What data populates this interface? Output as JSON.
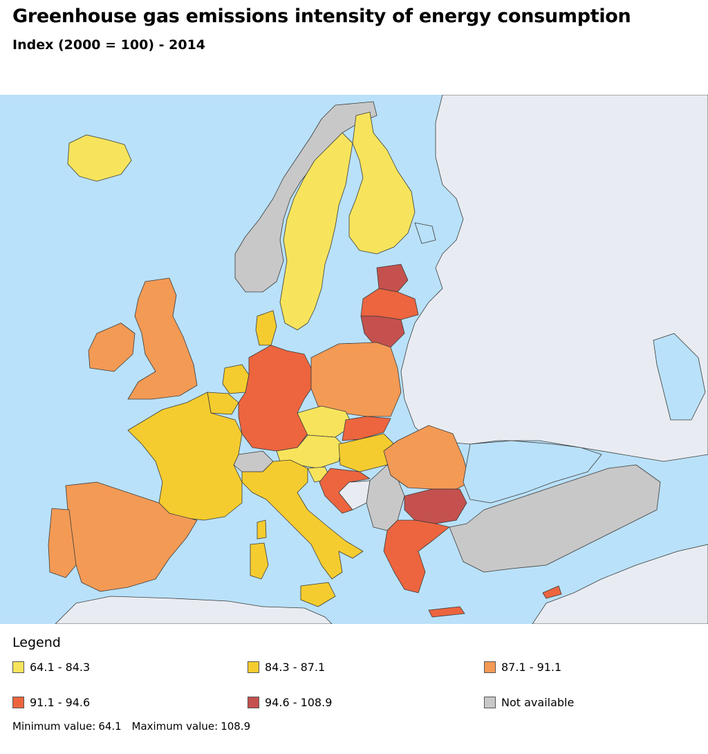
{
  "header": {
    "title": "Greenhouse gas emissions intensity of energy consumption",
    "subtitle": "Index (2000 = 100) - 2014"
  },
  "colors": {
    "sea": "#b9e1f9",
    "land_outside": "#e8ecf2",
    "border": "#3a3a3a",
    "lake": "#b9e1f9"
  },
  "legend": {
    "title": "Legend",
    "items": [
      {
        "label": "64.1 - 84.3",
        "color": "#f7e45c"
      },
      {
        "label": "84.3 - 87.1",
        "color": "#f5cc2f"
      },
      {
        "label": "87.1 - 91.1",
        "color": "#f39a55"
      },
      {
        "label": "91.1 - 94.6",
        "color": "#ec653f"
      },
      {
        "label": "94.6 - 108.9",
        "color": "#c4514e"
      },
      {
        "label": "Not available",
        "color": "#c8c8c8"
      }
    ]
  },
  "summary": {
    "min_label": "Minimum value:",
    "min_value": "64.1",
    "max_label": "Maximum value:",
    "max_value": "108.9"
  }
}
